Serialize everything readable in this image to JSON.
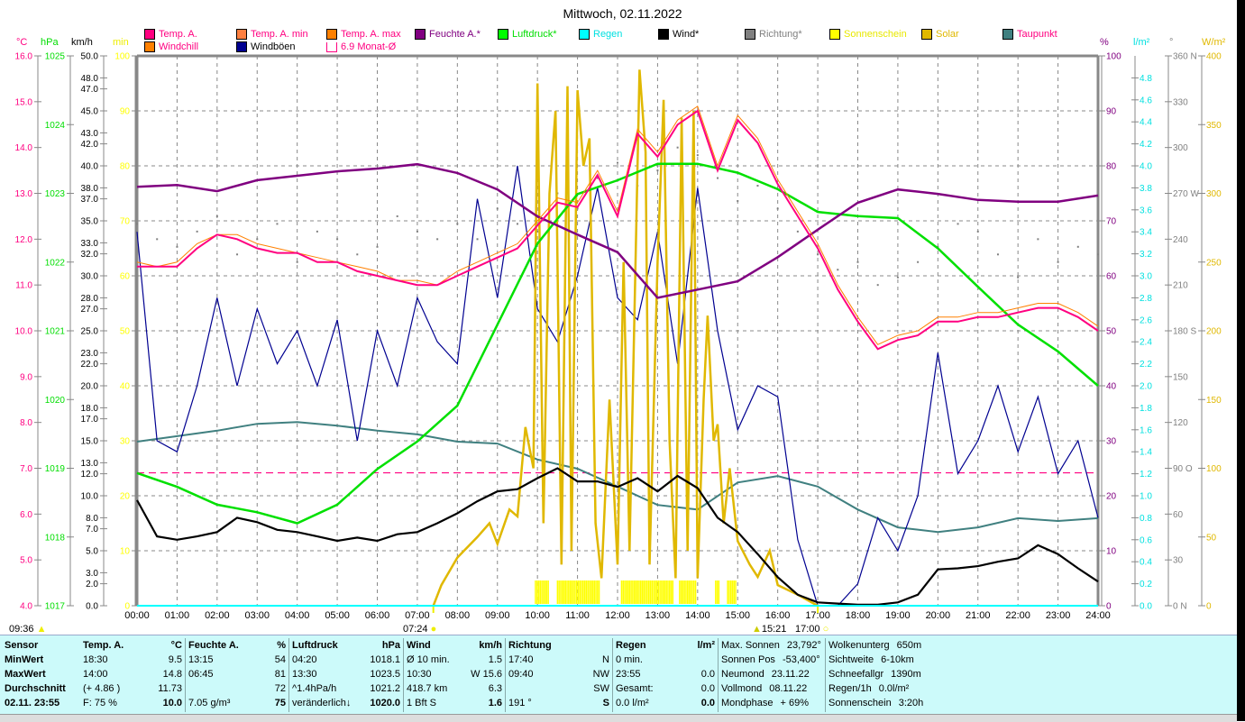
{
  "title": "Mittwoch, 02.11.2022",
  "legend": [
    {
      "label": "Temp. A.",
      "color": "#ff0080",
      "text_color": "#ff0080"
    },
    {
      "label": "Temp. A. min",
      "color": "#ff8040",
      "text_color": "#ff0080"
    },
    {
      "label": "Temp. A. max",
      "color": "#ff8000",
      "text_color": "#ff0080"
    },
    {
      "label": "Feuchte A.*",
      "color": "#800080",
      "text_color": "#800080"
    },
    {
      "label": "Luftdruck*",
      "color": "#00ff00",
      "text_color": "#00dd00"
    },
    {
      "label": "Regen",
      "color": "#00ffff",
      "text_color": "#00e0e0"
    },
    {
      "label": "Wind*",
      "color": "#000000",
      "text_color": "#000000"
    },
    {
      "label": "Richtung*",
      "color": "#808080",
      "text_color": "#808080"
    },
    {
      "label": "Sonnenschein",
      "color": "#ffff00",
      "text_color": "#e8e800"
    },
    {
      "label": "Solar",
      "color": "#e0b800",
      "text_color": "#e0b800"
    },
    {
      "label": "Taupunkt",
      "color": "#408080",
      "text_color": "#ff0080"
    },
    {
      "label": "Windchill",
      "color": "#ff8000",
      "text_color": "#ff0080"
    },
    {
      "label": "Windböen",
      "color": "#000090",
      "text_color": "#000000"
    },
    {
      "label": "6.9 Monat-Ø",
      "color": "#ff0080",
      "text_color": "#ff0080"
    }
  ],
  "axes": {
    "left": [
      {
        "unit": "°C",
        "color": "#ff0080",
        "ticks": [
          "16.0",
          "15.0",
          "14.0",
          "13.0",
          "12.0",
          "11.0",
          "10.0",
          "9.0",
          "8.0",
          "7.0",
          "6.0",
          "5.0",
          "4.0"
        ],
        "range": [
          4,
          16
        ]
      },
      {
        "unit": "hPa",
        "color": "#00dd00",
        "ticks": [
          "1025",
          "1024",
          "1023",
          "1022",
          "1021",
          "1020",
          "1019",
          "1018",
          "1017"
        ],
        "range": [
          1017,
          1025
        ]
      },
      {
        "unit": "km/h",
        "color": "#000000",
        "ticks": [
          "50.0",
          "48.0",
          "47.0",
          "45.0",
          "43.0",
          "42.0",
          "40.0",
          "38.0",
          "37.0",
          "35.0",
          "33.0",
          "32.0",
          "30.0",
          "28.0",
          "27.0",
          "25.0",
          "23.0",
          "22.0",
          "20.0",
          "18.0",
          "17.0",
          "15.0",
          "13.0",
          "12.0",
          "10.0",
          "8.0",
          "7.0",
          "5.0",
          "3.0",
          "2.0",
          "0.0"
        ],
        "range": [
          0,
          50
        ]
      },
      {
        "unit": "min",
        "color": "#ffff00",
        "ticks": [
          "100",
          "90",
          "80",
          "70",
          "60",
          "50",
          "40",
          "30",
          "20",
          "10",
          "0"
        ],
        "range": [
          0,
          100
        ]
      }
    ],
    "right": [
      {
        "unit": "%",
        "color": "#800080",
        "ticks": [
          "100",
          "90",
          "80",
          "70",
          "60",
          "50",
          "40",
          "30",
          "20",
          "10",
          "0"
        ],
        "range": [
          0,
          100
        ]
      },
      {
        "unit": "l/m²",
        "color": "#00e0e0",
        "ticks": [
          "4.8",
          "4.6",
          "4.4",
          "4.2",
          "4.0",
          "3.8",
          "3.6",
          "3.4",
          "3.2",
          "3.0",
          "2.8",
          "2.6",
          "2.4",
          "2.2",
          "2.0",
          "1.8",
          "1.6",
          "1.4",
          "1.2",
          "1.0",
          "0.8",
          "0.6",
          "0.4",
          "0.2",
          "0.0"
        ],
        "range": [
          0,
          5
        ]
      },
      {
        "unit": "°",
        "color": "#808080",
        "ticks": [
          "360 N",
          "330",
          "300",
          "270 W",
          "240",
          "210",
          "180 S",
          "150",
          "120",
          "90  O",
          "60",
          "30",
          "0   N"
        ],
        "range": [
          0,
          360
        ]
      },
      {
        "unit": "W/m²",
        "color": "#e0b800",
        "ticks": [
          "400",
          "350",
          "300",
          "250",
          "200",
          "150",
          "100",
          "50",
          "0"
        ],
        "range": [
          0,
          400
        ]
      }
    ],
    "x_ticks": [
      "00:00",
      "01:00",
      "02:00",
      "03:00",
      "04:00",
      "05:00",
      "06:00",
      "07:00",
      "08:00",
      "09:00",
      "10:00",
      "11:00",
      "12:00",
      "13:00",
      "14:00",
      "15:00",
      "16:00",
      "17:00",
      "18:00",
      "19:00",
      "20:00",
      "21:00",
      "22:00",
      "23:00",
      "24:00"
    ]
  },
  "sun_moon": {
    "moonrise_label": "09:36",
    "sunrise_label": "07:24",
    "moonset_label": "15:21",
    "sunset_label": "17:00",
    "sunrise_h": 7.4,
    "sunset_h": 17.0
  },
  "chart_data": {
    "type": "line",
    "title": "Mittwoch, 02.11.2022",
    "xlabel": "Uhrzeit",
    "xlim": [
      0,
      24
    ],
    "grid": true,
    "monthly_avg_temp": 6.9,
    "series": [
      {
        "name": "Temp. A.",
        "axis": "°C",
        "color": "#ff0080",
        "step_h": 0.5,
        "values": [
          11.4,
          11.4,
          11.4,
          11.8,
          12.1,
          12.0,
          11.8,
          11.7,
          11.7,
          11.5,
          11.5,
          11.3,
          11.2,
          11.1,
          11.0,
          11.0,
          11.2,
          11.4,
          11.6,
          11.8,
          12.3,
          12.8,
          12.7,
          13.4,
          12.5,
          14.3,
          13.8,
          14.5,
          14.8,
          13.5,
          14.6,
          14.1,
          13.2,
          12.5,
          11.8,
          10.9,
          10.2,
          9.6,
          9.8,
          9.9,
          10.2,
          10.2,
          10.3,
          10.3,
          10.4,
          10.5,
          10.5,
          10.3,
          10.0
        ]
      },
      {
        "name": "Windchill",
        "axis": "°C",
        "color": "#ff8000",
        "step_h": 0.5,
        "values": [
          11.5,
          11.4,
          11.5,
          11.9,
          12.1,
          12.1,
          11.9,
          11.8,
          11.7,
          11.6,
          11.5,
          11.4,
          11.3,
          11.1,
          11.1,
          11.0,
          11.3,
          11.5,
          11.7,
          11.9,
          12.4,
          12.9,
          12.8,
          13.5,
          12.6,
          14.4,
          13.9,
          14.6,
          14.9,
          13.6,
          14.7,
          14.2,
          13.3,
          12.6,
          11.9,
          11.0,
          10.3,
          9.7,
          9.9,
          10.0,
          10.3,
          10.3,
          10.4,
          10.4,
          10.5,
          10.6,
          10.6,
          10.4,
          10.1
        ]
      },
      {
        "name": "Feuchte A.*",
        "axis": "%",
        "color": "#800080",
        "step_h": 1,
        "values": [
          76.2,
          76.5,
          75.4,
          77.4,
          78.2,
          79.0,
          79.5,
          80.3,
          78.7,
          75.7,
          70.8,
          67.5,
          64.3,
          56.0,
          57.5,
          59.0,
          63.4,
          68.4,
          73.3,
          75.7,
          74.9,
          73.8,
          73.5,
          73.5,
          74.6
        ]
      },
      {
        "name": "Luftdruck*",
        "axis": "hPa",
        "color": "#00e000",
        "step_h": 1,
        "values": [
          1018.93,
          1018.73,
          1018.47,
          1018.36,
          1018.2,
          1018.47,
          1018.99,
          1019.39,
          1019.91,
          1021.09,
          1022.27,
          1022.99,
          1023.19,
          1023.43,
          1023.43,
          1023.3,
          1023.06,
          1022.73,
          1022.67,
          1022.64,
          1022.2,
          1021.64,
          1021.09,
          1020.7,
          1020.2
        ]
      },
      {
        "name": "Taupunkt",
        "axis": "°C",
        "color": "#408080",
        "step_h": 1,
        "values": [
          7.58,
          7.7,
          7.82,
          7.97,
          8.01,
          7.93,
          7.82,
          7.74,
          7.58,
          7.54,
          7.19,
          6.99,
          6.6,
          6.2,
          6.1,
          6.69,
          6.83,
          6.6,
          6.1,
          5.71,
          5.61,
          5.71,
          5.91,
          5.85,
          5.91
        ]
      },
      {
        "name": "Wind*",
        "axis": "km/h",
        "color": "#000000",
        "step_h": 0.5,
        "values": [
          9.6,
          6.3,
          6.0,
          6.3,
          6.7,
          8.0,
          7.6,
          6.9,
          6.7,
          6.3,
          5.9,
          6.2,
          5.9,
          6.5,
          6.7,
          7.5,
          8.4,
          9.5,
          10.4,
          10.6,
          11.6,
          12.5,
          11.3,
          11.3,
          10.8,
          11.6,
          10.4,
          11.8,
          10.7,
          8.0,
          6.7,
          4.7,
          2.6,
          1.0,
          0.3,
          0.2,
          0.1,
          0.1,
          0.3,
          1.0,
          3.3,
          3.4,
          3.6,
          4.0,
          4.3,
          5.5,
          4.7,
          3.4,
          2.2
        ]
      },
      {
        "name": "Windböen",
        "axis": "km/h",
        "color": "#000090",
        "step_h": 0.5,
        "values": [
          34,
          15,
          14,
          20,
          28,
          20,
          27,
          22,
          25,
          20,
          26,
          15,
          25,
          20,
          28,
          24,
          22,
          37,
          28,
          40,
          27,
          24,
          30,
          38,
          28,
          26,
          34,
          22,
          38,
          25,
          16,
          20,
          19,
          6,
          0,
          0,
          2,
          8,
          5,
          10,
          23,
          12,
          15,
          20,
          14,
          19,
          12,
          15,
          8
        ]
      },
      {
        "name": "Richtung*",
        "axis": "°",
        "color": "#808080",
        "step_h": 0.5,
        "style": "dots",
        "values": [
          250,
          240,
          235,
          245,
          255,
          230,
          240,
          250,
          225,
          245,
          240,
          230,
          235,
          255,
          245,
          240,
          250,
          240,
          260,
          250,
          245,
          270,
          260,
          280,
          290,
          275,
          285,
          300,
          295,
          280,
          265,
          275,
          260,
          245,
          230,
          220,
          225,
          210,
          215,
          225,
          235,
          250,
          245,
          230,
          215,
          240,
          225,
          235,
          230
        ]
      },
      {
        "name": "Solar",
        "axis": "W/m²",
        "color": "#e0b800",
        "points": [
          [
            7.4,
            0
          ],
          [
            7.6,
            15
          ],
          [
            8.0,
            35
          ],
          [
            8.5,
            50
          ],
          [
            8.8,
            60
          ],
          [
            9.0,
            45
          ],
          [
            9.3,
            70
          ],
          [
            9.5,
            65
          ],
          [
            9.7,
            130
          ],
          [
            9.9,
            100
          ],
          [
            10.0,
            380
          ],
          [
            10.15,
            60
          ],
          [
            10.3,
            300
          ],
          [
            10.45,
            360
          ],
          [
            10.6,
            30
          ],
          [
            10.75,
            378
          ],
          [
            10.85,
            40
          ],
          [
            11.0,
            375
          ],
          [
            11.15,
            320
          ],
          [
            11.3,
            340
          ],
          [
            11.45,
            60
          ],
          [
            11.6,
            20
          ],
          [
            11.8,
            150
          ],
          [
            12.0,
            30
          ],
          [
            12.15,
            250
          ],
          [
            12.3,
            40
          ],
          [
            12.55,
            390
          ],
          [
            12.7,
            330
          ],
          [
            12.8,
            30
          ],
          [
            13.0,
            250
          ],
          [
            13.15,
            368
          ],
          [
            13.3,
            120
          ],
          [
            13.45,
            20
          ],
          [
            13.6,
            355
          ],
          [
            13.75,
            40
          ],
          [
            13.9,
            360
          ],
          [
            14.0,
            20
          ],
          [
            14.15,
            150
          ],
          [
            14.25,
            211
          ],
          [
            14.4,
            120
          ],
          [
            14.5,
            132
          ],
          [
            14.65,
            60
          ],
          [
            14.8,
            100
          ],
          [
            15.0,
            47
          ],
          [
            15.3,
            30
          ],
          [
            15.5,
            21
          ],
          [
            15.8,
            40
          ],
          [
            16.0,
            15
          ],
          [
            16.5,
            8
          ],
          [
            17.0,
            0
          ]
        ]
      },
      {
        "name": "Regen",
        "axis": "l/m²",
        "color": "#00ffff",
        "step_h": 24,
        "values": [
          0,
          0
        ]
      }
    ],
    "sunshine_intervals_h": [
      [
        9.95,
        10.3
      ],
      [
        10.5,
        11.55
      ],
      [
        12.1,
        13.4
      ],
      [
        13.55,
        13.95
      ],
      [
        14.45,
        14.55
      ],
      [
        14.75,
        14.95
      ]
    ]
  },
  "table": {
    "columns": [
      {
        "header": [
          "Sensor",
          ""
        ],
        "rows": [
          [
            "MinWert",
            ""
          ],
          [
            "MaxWert",
            ""
          ],
          [
            "Durchschnitt",
            ""
          ],
          [
            "02.11. 23:55",
            ""
          ]
        ]
      },
      {
        "header": [
          "Temp. A.",
          "°C"
        ],
        "rows": [
          [
            "18:30",
            "9.5"
          ],
          [
            "14:00",
            "14.8"
          ],
          [
            "(+ 4.86 )",
            "11.73"
          ],
          [
            "F: 75 %",
            "10.0"
          ]
        ]
      },
      {
        "header": [
          "Feuchte A.",
          "%"
        ],
        "rows": [
          [
            "13:15",
            "54"
          ],
          [
            "06:45",
            "81"
          ],
          [
            "",
            "72"
          ],
          [
            "7.05 g/m³",
            "75"
          ]
        ]
      },
      {
        "header": [
          "Luftdruck",
          "hPa"
        ],
        "rows": [
          [
            "04:20",
            "1018.1"
          ],
          [
            "13:30",
            "1023.5"
          ],
          [
            "^1.4hPa/h",
            "1021.2"
          ],
          [
            "veränderlich↓",
            "1020.0"
          ]
        ]
      },
      {
        "header": [
          "Wind",
          "km/h"
        ],
        "rows": [
          [
            "Ø 10 min.",
            "1.5"
          ],
          [
            "10:30",
            "W 15.6"
          ],
          [
            "418.7 km",
            "6.3"
          ],
          [
            "1 Bft S",
            "1.6"
          ]
        ]
      },
      {
        "header": [
          "Richtung",
          ""
        ],
        "rows": [
          [
            "17:40",
            "N"
          ],
          [
            "09:40",
            "NW"
          ],
          [
            "",
            "SW"
          ],
          [
            "191 °",
            "S"
          ]
        ]
      },
      {
        "header": [
          "Regen",
          "l/m²"
        ],
        "rows": [
          [
            "0 min.",
            ""
          ],
          [
            "23:55",
            "0.0"
          ],
          [
            "Gesamt:",
            "0.0"
          ],
          [
            "0.0 l/m²",
            "0.0"
          ]
        ]
      },
      {
        "header": [
          "Max. Sonnen",
          "23,792°"
        ],
        "rows": [
          [
            "Sonnen Pos",
            "-53,400°"
          ],
          [
            "Neumond",
            "23.11.22"
          ],
          [
            "Vollmond",
            "08.11.22"
          ],
          [
            "Mondphase",
            "+ 69%"
          ]
        ]
      },
      {
        "header": [
          "Wolkenunterg",
          "650m"
        ],
        "rows": [
          [
            "Sichtweite",
            "6-10km"
          ],
          [
            "Schneefallgr",
            "1390m"
          ],
          [
            "Regen/1h",
            "0.0l/m²"
          ],
          [
            "Sonnenschein",
            "3:20h"
          ]
        ]
      }
    ]
  }
}
